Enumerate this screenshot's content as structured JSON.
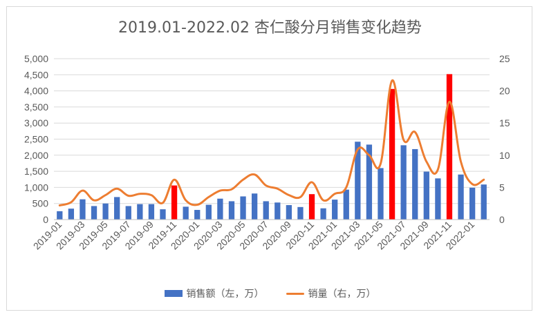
{
  "chart_data": {
    "type": "bar",
    "title": "2019.01-2022.02 杏仁酸分月销售变化趋势",
    "x": [
      "2019-01",
      "2019-02",
      "2019-03",
      "2019-04",
      "2019-05",
      "2019-06",
      "2019-07",
      "2019-08",
      "2019-09",
      "2019-10",
      "2019-11",
      "2019-12",
      "2020-01",
      "2020-02",
      "2020-03",
      "2020-04",
      "2020-05",
      "2020-06",
      "2020-07",
      "2020-08",
      "2020-09",
      "2020-10",
      "2020-11",
      "2020-12",
      "2021-01",
      "2021-02",
      "2021-03",
      "2021-04",
      "2021-05",
      "2021-06",
      "2021-07",
      "2021-08",
      "2021-09",
      "2021-10",
      "2021-11",
      "2021-12",
      "2022-01",
      "2022-02"
    ],
    "x_tick_labels": [
      "2019-01",
      "2019-03",
      "2019-05",
      "2019-07",
      "2019-09",
      "2019-11",
      "2020-01",
      "2020-03",
      "2020-05",
      "2020-07",
      "2020-09",
      "2020-11",
      "2021-01",
      "2021-03",
      "2021-05",
      "2021-07",
      "2021-09",
      "2021-11",
      "2022-01"
    ],
    "y_left_ticks": [
      "0",
      "500",
      "1,000",
      "1,500",
      "2,000",
      "2,500",
      "3,000",
      "3,500",
      "4,000",
      "4,500",
      "5,000"
    ],
    "y_right_ticks": [
      "0",
      "5",
      "10",
      "15",
      "20",
      "25"
    ],
    "ylim_left": [
      0,
      5000
    ],
    "ylim_right": [
      0,
      25
    ],
    "grid": true,
    "legend_position": "bottom",
    "series": [
      {
        "name": "销售额（左，万）",
        "kind": "bar",
        "axis": "left",
        "color": "#4472c4",
        "highlight_color": "#ff0000",
        "highlight_indices": [
          10,
          22,
          29,
          34
        ],
        "values": [
          260,
          340,
          630,
          420,
          500,
          700,
          420,
          480,
          480,
          320,
          1060,
          400,
          300,
          460,
          650,
          570,
          720,
          810,
          570,
          530,
          450,
          390,
          790,
          350,
          620,
          930,
          2420,
          2330,
          1600,
          4060,
          2310,
          2190,
          1490,
          1280,
          4520,
          1400,
          990,
          1090
        ]
      },
      {
        "name": "销量（右，万）",
        "kind": "line",
        "axis": "right",
        "color": "#ed7d31",
        "values": [
          2.2,
          2.7,
          4.5,
          3.0,
          3.8,
          4.8,
          3.7,
          4.0,
          3.8,
          2.6,
          6.2,
          3.0,
          2.3,
          3.5,
          4.5,
          4.7,
          6.2,
          7.0,
          5.3,
          4.8,
          3.8,
          3.5,
          5.8,
          3.0,
          4.0,
          5.0,
          10.9,
          10.0,
          8.7,
          21.6,
          12.4,
          13.6,
          9.0,
          7.8,
          18.3,
          9.0,
          5.5,
          6.2
        ]
      }
    ]
  }
}
